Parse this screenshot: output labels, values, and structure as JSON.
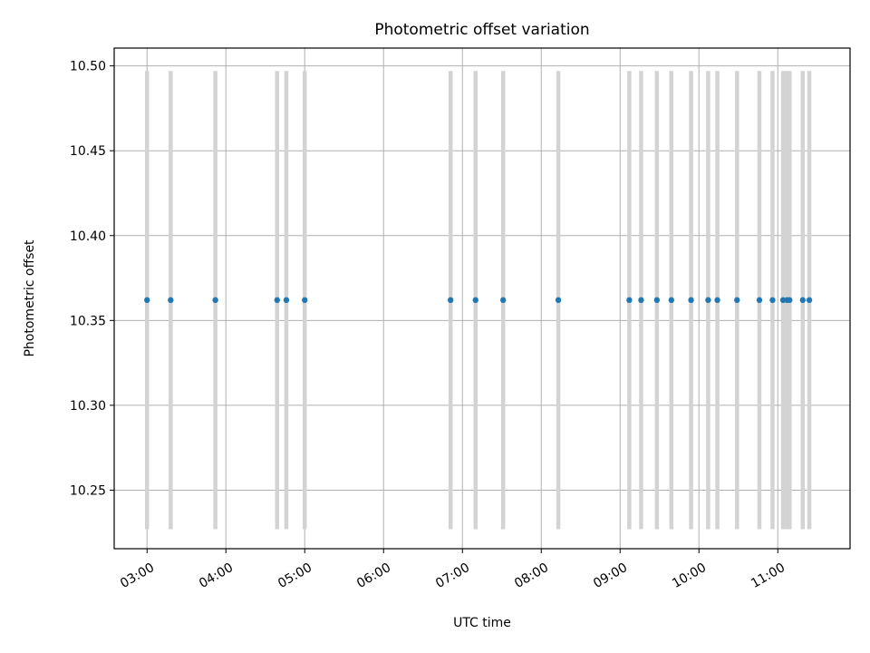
{
  "chart_data": {
    "type": "scatter",
    "title": "Photometric offset variation",
    "xlabel": "UTC time",
    "ylabel": "Photometric offset",
    "x_axis_kind": "time (HH:MM, UTC)",
    "xlim": [
      "02:35",
      "11:55"
    ],
    "ylim": [
      10.2155,
      10.5105
    ],
    "xticks": [
      "03:00",
      "04:00",
      "05:00",
      "06:00",
      "07:00",
      "08:00",
      "09:00",
      "10:00",
      "11:00"
    ],
    "yticks": [
      "10.25",
      "10.30",
      "10.35",
      "10.40",
      "10.45",
      "10.50"
    ],
    "grid": true,
    "series": [
      {
        "type": "scatter_with_error_bars",
        "color": "#1f77b4",
        "errorbar_color": "#d3d3d3",
        "x": [
          "03:00",
          "03:18",
          "03:52",
          "04:39",
          "04:46",
          "05:00",
          "06:51",
          "07:10",
          "07:31",
          "08:13",
          "09:07",
          "09:16",
          "09:28",
          "09:39",
          "09:54",
          "10:07",
          "10:14",
          "10:29",
          "10:46",
          "10:56",
          "11:04",
          "11:07",
          "11:09",
          "11:19",
          "11:24"
        ],
        "y": [
          10.362,
          10.362,
          10.362,
          10.362,
          10.362,
          10.362,
          10.362,
          10.362,
          10.362,
          10.362,
          10.362,
          10.362,
          10.362,
          10.362,
          10.362,
          10.362,
          10.362,
          10.362,
          10.362,
          10.362,
          10.362,
          10.362,
          10.362,
          10.362,
          10.362
        ],
        "y_low": [
          10.227,
          10.227,
          10.227,
          10.227,
          10.227,
          10.227,
          10.227,
          10.227,
          10.227,
          10.227,
          10.227,
          10.227,
          10.227,
          10.227,
          10.227,
          10.227,
          10.227,
          10.227,
          10.227,
          10.227,
          10.227,
          10.227,
          10.227,
          10.227,
          10.227
        ],
        "y_high": [
          10.497,
          10.497,
          10.497,
          10.497,
          10.497,
          10.497,
          10.497,
          10.497,
          10.497,
          10.497,
          10.497,
          10.497,
          10.497,
          10.497,
          10.497,
          10.497,
          10.497,
          10.497,
          10.497,
          10.497,
          10.497,
          10.497,
          10.497,
          10.497,
          10.497
        ]
      }
    ]
  }
}
